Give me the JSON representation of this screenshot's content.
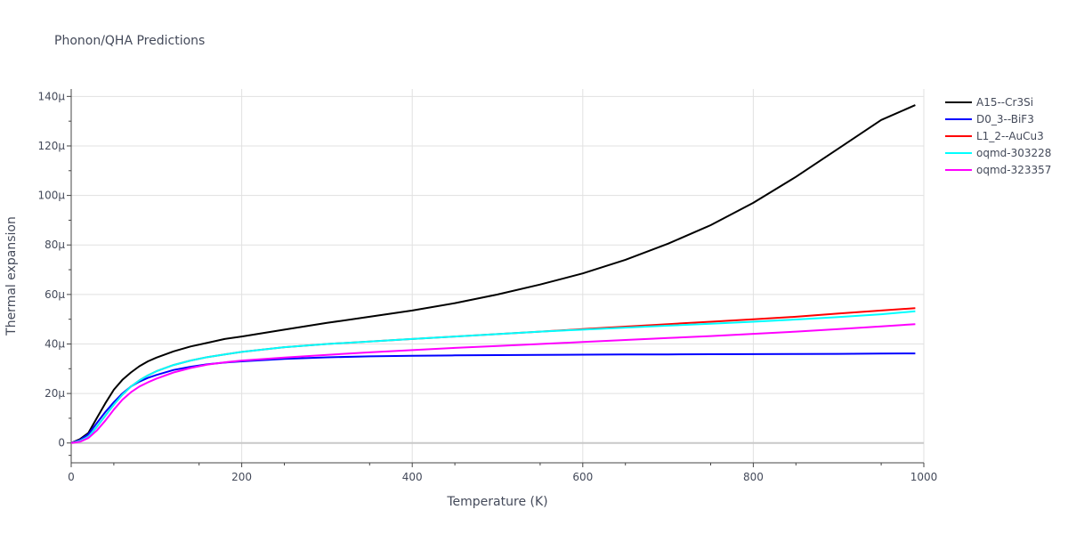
{
  "chart_data": {
    "type": "line",
    "title": "Phonon/QHA Predictions",
    "xlabel": "Temperature (K)",
    "ylabel": "Thermal expansion",
    "xlim": [
      0,
      1000
    ],
    "ylim": [
      -8,
      143
    ],
    "x_ticks": [
      0,
      200,
      400,
      600,
      800,
      1000
    ],
    "x_tick_labels": [
      "0",
      "200",
      "400",
      "600",
      "800",
      "1000"
    ],
    "y_ticks": [
      0,
      20,
      40,
      60,
      80,
      100,
      120,
      140
    ],
    "y_tick_labels": [
      "0",
      "20μ",
      "40μ",
      "60μ",
      "80μ",
      "100μ",
      "120μ",
      "140μ"
    ],
    "grid": true,
    "legend_position": "top-right",
    "series": [
      {
        "name": "A15--Cr3Si",
        "color": "#000000",
        "x": [
          0,
          10,
          20,
          30,
          40,
          50,
          60,
          70,
          80,
          90,
          100,
          120,
          140,
          160,
          180,
          200,
          250,
          300,
          350,
          400,
          450,
          500,
          550,
          600,
          650,
          700,
          750,
          800,
          850,
          900,
          950,
          990
        ],
        "y": [
          0,
          1.5,
          4,
          10,
          16,
          21.5,
          25.5,
          28.5,
          31,
          33,
          34.5,
          37,
          39,
          40.5,
          42,
          43,
          45.8,
          48.5,
          51,
          53.5,
          56.5,
          60,
          64,
          68.5,
          74,
          80.5,
          88,
          97,
          107.5,
          119,
          130.5,
          136.5
        ]
      },
      {
        "name": "D0_3--BiF3",
        "color": "#0000ff",
        "x": [
          0,
          10,
          20,
          30,
          40,
          50,
          60,
          70,
          80,
          90,
          100,
          120,
          140,
          160,
          180,
          200,
          250,
          300,
          350,
          400,
          450,
          500,
          550,
          600,
          650,
          700,
          750,
          800,
          850,
          900,
          950,
          990
        ],
        "y": [
          0,
          1.2,
          3.5,
          8,
          12.5,
          16.5,
          20,
          22.8,
          24.8,
          26.3,
          27.5,
          29.5,
          30.8,
          31.8,
          32.5,
          33,
          34,
          34.6,
          35,
          35.2,
          35.4,
          35.5,
          35.6,
          35.7,
          35.75,
          35.8,
          35.85,
          35.9,
          35.95,
          36,
          36.1,
          36.2
        ]
      },
      {
        "name": "L1_2--AuCu3",
        "color": "#ff0000",
        "x": [
          0,
          10,
          20,
          30,
          40,
          50,
          60,
          70,
          80,
          90,
          100,
          120,
          140,
          160,
          180,
          200,
          250,
          300,
          350,
          400,
          450,
          500,
          550,
          600,
          650,
          700,
          750,
          800,
          850,
          900,
          950,
          990
        ],
        "y": [
          0,
          0.8,
          2.5,
          6.5,
          11,
          15.5,
          19.5,
          22.8,
          25.3,
          27.3,
          29,
          31.5,
          33.3,
          34.7,
          35.8,
          36.8,
          38.7,
          40,
          41,
          42,
          43,
          44,
          45,
          46,
          47,
          48,
          49,
          50,
          51,
          52.3,
          53.5,
          54.5
        ]
      },
      {
        "name": "oqmd-303228",
        "color": "#00ffff",
        "x": [
          0,
          10,
          20,
          30,
          40,
          50,
          60,
          70,
          80,
          90,
          100,
          120,
          140,
          160,
          180,
          200,
          250,
          300,
          350,
          400,
          450,
          500,
          550,
          600,
          650,
          700,
          750,
          800,
          850,
          900,
          950,
          990
        ],
        "y": [
          0,
          0.8,
          2.5,
          6.5,
          11,
          15.5,
          19.5,
          22.8,
          25.3,
          27.3,
          29,
          31.5,
          33.3,
          34.7,
          35.8,
          36.8,
          38.7,
          40,
          41,
          42,
          43,
          44,
          45,
          45.8,
          46.6,
          47.4,
          48.2,
          49,
          49.9,
          50.9,
          52,
          53.2
        ]
      },
      {
        "name": "oqmd-323357",
        "color": "#ff00ff",
        "x": [
          0,
          10,
          20,
          30,
          40,
          50,
          60,
          70,
          80,
          90,
          100,
          120,
          140,
          160,
          180,
          200,
          250,
          300,
          350,
          400,
          450,
          500,
          550,
          600,
          650,
          700,
          750,
          800,
          850,
          900,
          950,
          990
        ],
        "y": [
          0,
          0.5,
          2,
          5,
          9,
          13.5,
          17.5,
          20.5,
          22.8,
          24.5,
          26,
          28.5,
          30.3,
          31.7,
          32.6,
          33.3,
          34.5,
          35.6,
          36.6,
          37.5,
          38.4,
          39.2,
          40,
          40.8,
          41.6,
          42.4,
          43.2,
          44.1,
          45,
          46,
          47.1,
          48
        ]
      }
    ]
  }
}
